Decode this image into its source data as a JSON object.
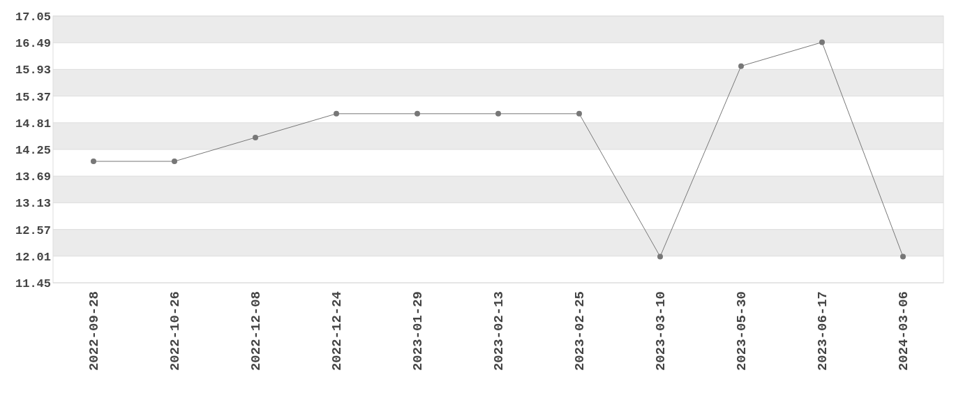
{
  "chart_data": {
    "type": "line",
    "categories": [
      "2022-09-28",
      "2022-10-26",
      "2022-12-08",
      "2022-12-24",
      "2023-01-29",
      "2023-02-13",
      "2023-02-25",
      "2023-03-10",
      "2023-05-30",
      "2023-06-17",
      "2024-03-06"
    ],
    "series": [
      {
        "color": "#777777",
        "values": [
          14.0,
          14.0,
          14.5,
          15.0,
          15.0,
          15.0,
          15.0,
          12.0,
          16.0,
          16.5,
          12.0
        ]
      }
    ],
    "ylim": [
      11.45,
      17.05
    ],
    "yticks": [
      11.45,
      12.01,
      12.57,
      13.13,
      13.69,
      14.25,
      14.81,
      15.37,
      15.93,
      16.49,
      17.05
    ],
    "grid": "y",
    "marker": "circle",
    "line_style": "solid"
  }
}
